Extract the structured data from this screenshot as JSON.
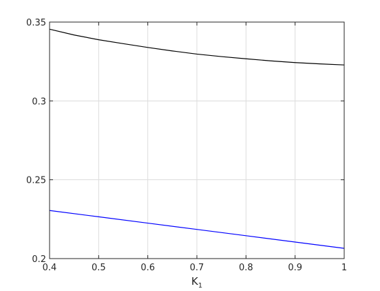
{
  "chart_data": {
    "type": "line",
    "title": "",
    "xlabel": {
      "base": "K",
      "sub": "1"
    },
    "ylabel": "",
    "xlim": [
      0.4,
      1.0
    ],
    "ylim": [
      0.2,
      0.35
    ],
    "grid": true,
    "x_ticks": [
      0.4,
      0.5,
      0.6,
      0.7,
      0.8,
      0.9,
      1.0
    ],
    "x_tick_labels": [
      "0.4",
      "0.5",
      "0.6",
      "0.7",
      "0.8",
      "0.9",
      "1"
    ],
    "y_ticks": [
      0.2,
      0.25,
      0.3,
      0.35
    ],
    "y_tick_labels": [
      "0.2",
      "0.25",
      "0.3",
      "0.35"
    ],
    "series": [
      {
        "color": "#000000",
        "x": [
          0.4,
          0.45,
          0.5,
          0.55,
          0.6,
          0.65,
          0.7,
          0.75,
          0.8,
          0.85,
          0.9,
          0.95,
          1.0
        ],
        "y": [
          0.3455,
          0.3418,
          0.3388,
          0.3363,
          0.3339,
          0.3317,
          0.3297,
          0.3281,
          0.3267,
          0.3254,
          0.3243,
          0.3235,
          0.3228
        ]
      },
      {
        "color": "#0000ff",
        "x": [
          0.4,
          0.5,
          0.6,
          0.7,
          0.8,
          0.9,
          1.0
        ],
        "y": [
          0.2305,
          0.2265,
          0.2225,
          0.2185,
          0.2145,
          0.2105,
          0.2065
        ]
      }
    ]
  }
}
